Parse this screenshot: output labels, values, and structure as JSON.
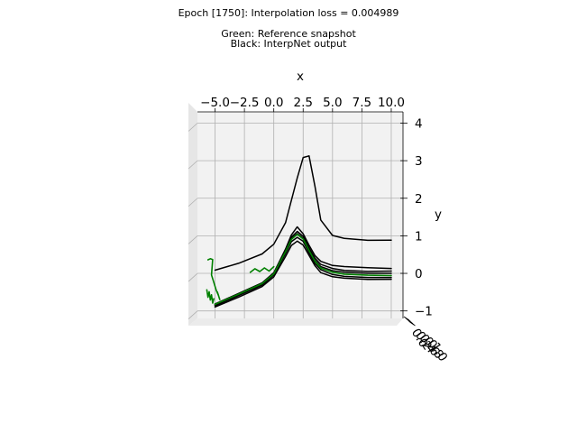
{
  "figure": {
    "title_lines": [
      "Epoch [1750]: Interpolation loss = 0.004989",
      "",
      "Green: Reference snapshot",
      "Black: InterpNet output"
    ]
  },
  "chart_data": {
    "type": "line",
    "projection": "3d",
    "xlabel": "x",
    "ylabel": "y",
    "zlabel": "",
    "xlim": [
      -6.5,
      11
    ],
    "ylim": [
      -1.2,
      4.3
    ],
    "x_ticks": [
      "−5.0",
      "−2.5",
      "0.0",
      "2.5",
      "5.0",
      "7.5",
      "10.0"
    ],
    "y_ticks": [
      "−1",
      "0",
      "1",
      "2",
      "3",
      "4"
    ],
    "z_ticks": [
      "0.0",
      "0.2",
      "0.4",
      "0.6",
      "0.8",
      "1.0"
    ],
    "grid": true,
    "colors": {
      "reference": "#008000",
      "interp": "#000000",
      "pane": "#f2f2f2",
      "grid": "#b0b0b0"
    },
    "series": [
      {
        "color": "interp",
        "x": [
          -5,
          -3,
          -1,
          0,
          1,
          1.5,
          2,
          2.5,
          3,
          3.5,
          4,
          5,
          6,
          8,
          10
        ],
        "y": [
          -0.02,
          0.18,
          0.45,
          0.72,
          1.3,
          1.9,
          2.5,
          3.05,
          3.1,
          2.3,
          1.4,
          1.0,
          0.93,
          0.9,
          0.92
        ]
      },
      {
        "color": "interp",
        "x": [
          -5,
          -3,
          -1,
          0,
          1,
          1.5,
          2,
          2.5,
          3,
          3.5,
          4,
          5,
          6,
          8,
          10
        ],
        "y": [
          -0.95,
          -0.65,
          -0.35,
          -0.05,
          0.6,
          0.98,
          1.2,
          1.02,
          0.72,
          0.45,
          0.3,
          0.2,
          0.18,
          0.17,
          0.17
        ]
      },
      {
        "color": "interp",
        "x": [
          -5,
          -3,
          -1,
          0,
          1,
          1.5,
          2,
          2.5,
          3,
          3.5,
          4,
          5,
          6,
          8,
          10
        ],
        "y": [
          -0.92,
          -0.62,
          -0.32,
          -0.04,
          0.58,
          0.92,
          1.08,
          0.95,
          0.65,
          0.38,
          0.22,
          0.12,
          0.08,
          0.07,
          0.1
        ]
      },
      {
        "color": "interp",
        "x": [
          -5,
          -3,
          -1,
          0,
          1,
          1.5,
          2,
          2.5,
          3,
          3.5,
          4,
          5,
          6,
          8,
          10
        ],
        "y": [
          -0.94,
          -0.64,
          -0.34,
          -0.06,
          0.55,
          0.88,
          1.02,
          0.9,
          0.6,
          0.32,
          0.16,
          0.06,
          0.03,
          0.02,
          0.04
        ]
      },
      {
        "color": "interp",
        "x": [
          -5,
          -3,
          -1,
          0,
          1,
          1.5,
          2,
          2.5,
          3,
          3.5,
          4,
          5,
          6,
          8,
          10
        ],
        "y": [
          -0.97,
          -0.68,
          -0.38,
          -0.1,
          0.48,
          0.8,
          0.92,
          0.82,
          0.52,
          0.24,
          0.08,
          -0.04,
          -0.08,
          -0.09,
          -0.07
        ]
      },
      {
        "color": "interp",
        "x": [
          -5,
          -3,
          -1,
          0,
          1,
          1.5,
          2,
          2.5,
          3,
          3.5,
          4,
          5,
          6,
          8,
          10
        ],
        "y": [
          -1.0,
          -0.72,
          -0.42,
          -0.15,
          0.4,
          0.7,
          0.82,
          0.72,
          0.45,
          0.18,
          0.0,
          -0.1,
          -0.13,
          -0.14,
          -0.12
        ]
      },
      {
        "color": "reference",
        "x": [
          -5,
          -3,
          -1,
          0,
          1,
          1.5,
          2,
          2.5,
          3,
          3.5,
          4,
          5,
          6,
          8,
          10
        ],
        "y": [
          -0.93,
          -0.64,
          -0.34,
          -0.07,
          0.53,
          0.86,
          1.0,
          0.88,
          0.58,
          0.3,
          0.12,
          0.02,
          -0.02,
          -0.03,
          -0.02
        ]
      },
      {
        "color": "reference",
        "x": [
          -5.6,
          -5.4,
          -5.2,
          -5.3,
          -5.1,
          -4.9,
          -4.7,
          -4.8,
          -4.6
        ],
        "y": [
          0.25,
          0.28,
          0.26,
          -0.15,
          -0.35,
          -0.55,
          -0.7,
          -0.6,
          -0.8
        ]
      },
      {
        "color": "reference",
        "x": [
          -5.7,
          -5.6,
          -5.5,
          -5.4,
          -5.3,
          -5.2,
          -5.1
        ],
        "y": [
          -0.55,
          -0.75,
          -0.6,
          -0.82,
          -0.68,
          -0.9,
          -0.78
        ]
      },
      {
        "color": "reference",
        "x": [
          -2.0,
          -1.6,
          -1.2,
          -0.8,
          -0.4,
          0.0
        ],
        "y": [
          -0.05,
          0.05,
          -0.02,
          0.08,
          0.0,
          0.12
        ]
      }
    ]
  }
}
